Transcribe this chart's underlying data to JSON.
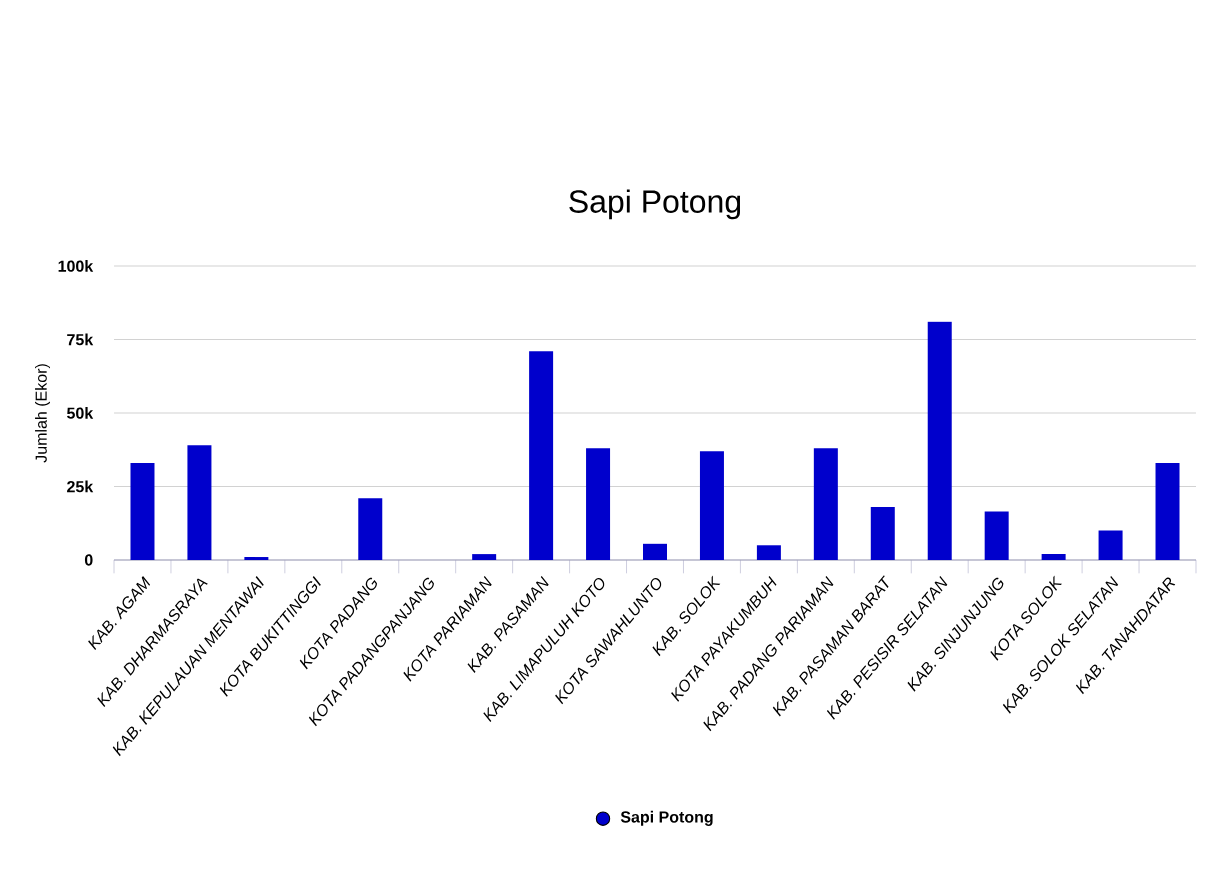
{
  "chart_data": {
    "type": "bar",
    "title": "Sapi Potong",
    "ylabel": "Jumlah (Ekor)",
    "categories": [
      "KAB. AGAM",
      "KAB. DHARMASRAYA",
      "KAB. KEPULAUAN MENTAWAI",
      "KOTA BUKITTINGGI",
      "KOTA PADANG",
      "KOTA PADANGPANJANG",
      "KOTA PARIAMAN",
      "KAB. PASAMAN",
      "KAB. LIMAPULUH KOTO",
      "KOTA SAWAHLUNTO",
      "KAB. SOLOK",
      "KOTA PAYAKUMBUH",
      "KAB. PADANG PARIAMAN",
      "KAB. PASAMAN BARAT",
      "KAB. PESISIR SELATAN",
      "KAB. SINJUNJUNG",
      "KOTA SOLOK",
      "KAB. SOLOK SELATAN",
      "KAB. TANAHDATAR"
    ],
    "series": [
      {
        "name": "Sapi Potong",
        "color": "#0000cc",
        "values": [
          33000,
          39000,
          1000,
          0,
          21000,
          0,
          2000,
          71000,
          38000,
          5500,
          37000,
          5000,
          38000,
          18000,
          81000,
          16500,
          2000,
          10000,
          33000
        ]
      }
    ],
    "ylim": [
      0,
      100000
    ],
    "yticks": [
      0,
      {
        "value": 25000,
        "label": "25k"
      },
      {
        "value": 50000,
        "label": "50k"
      },
      {
        "value": 75000,
        "label": "75k"
      },
      {
        "value": 100000,
        "label": "100k"
      }
    ],
    "grid": "y",
    "legend": "bottom",
    "marker": "circle"
  }
}
